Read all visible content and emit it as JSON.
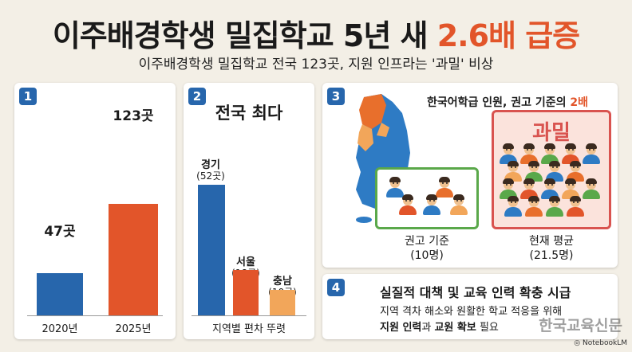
{
  "header": {
    "title_main": "이주배경학생 밀집학교 5년 새 ",
    "title_highlight": "2.6배 급증",
    "subtitle": "이주배경학생 밀집학교 전국 123곳, 지원 인프라는 '과밀' 비상"
  },
  "panel1": {
    "number": "1",
    "chart_data": {
      "type": "bar",
      "categories": [
        "2020년",
        "2025년"
      ],
      "values": [
        47,
        123
      ],
      "value_labels": [
        "47곳",
        "123곳"
      ],
      "colors": [
        "#2766ac",
        "#e2552a"
      ]
    }
  },
  "panel2": {
    "number": "2",
    "heading": "전국 최다",
    "caption": "지역별 편차 뚜렷",
    "chart_data": {
      "type": "bar",
      "categories": [
        "경기",
        "서울",
        "충남"
      ],
      "values": [
        52,
        18,
        10
      ],
      "value_labels": [
        "(52곳)",
        "(18곳)",
        "(10곳)"
      ],
      "colors": [
        "#2766ac",
        "#e2552a",
        "#f2a65a"
      ]
    }
  },
  "panel3": {
    "number": "3",
    "heading": "한국어학급 인원, 권고 기준의 ",
    "heading_highlight": "2배",
    "crowded_label": "과밀",
    "recommended_caption_line1": "권고 기준",
    "recommended_caption_line2": "(10명)",
    "current_caption_line1": "현재 평균",
    "current_caption_line2": "(21.5명)",
    "map_colors": {
      "blue": "#2e7bc4",
      "orange": "#e86f2c",
      "light_orange": "#f2a65a"
    }
  },
  "panel4": {
    "number": "4",
    "heading": "실질적 대책 및 교육 인력 확충 시급",
    "line1": "지역 격차 해소와 원활한 학교 적응을 위해",
    "line2_bold1": "지원 인력",
    "line2_mid": "과 ",
    "line2_bold2": "교원 확보",
    "line2_end": " 필요"
  },
  "watermark": {
    "publisher": "한국교육신문",
    "notebooklm": "NotebookLM"
  }
}
